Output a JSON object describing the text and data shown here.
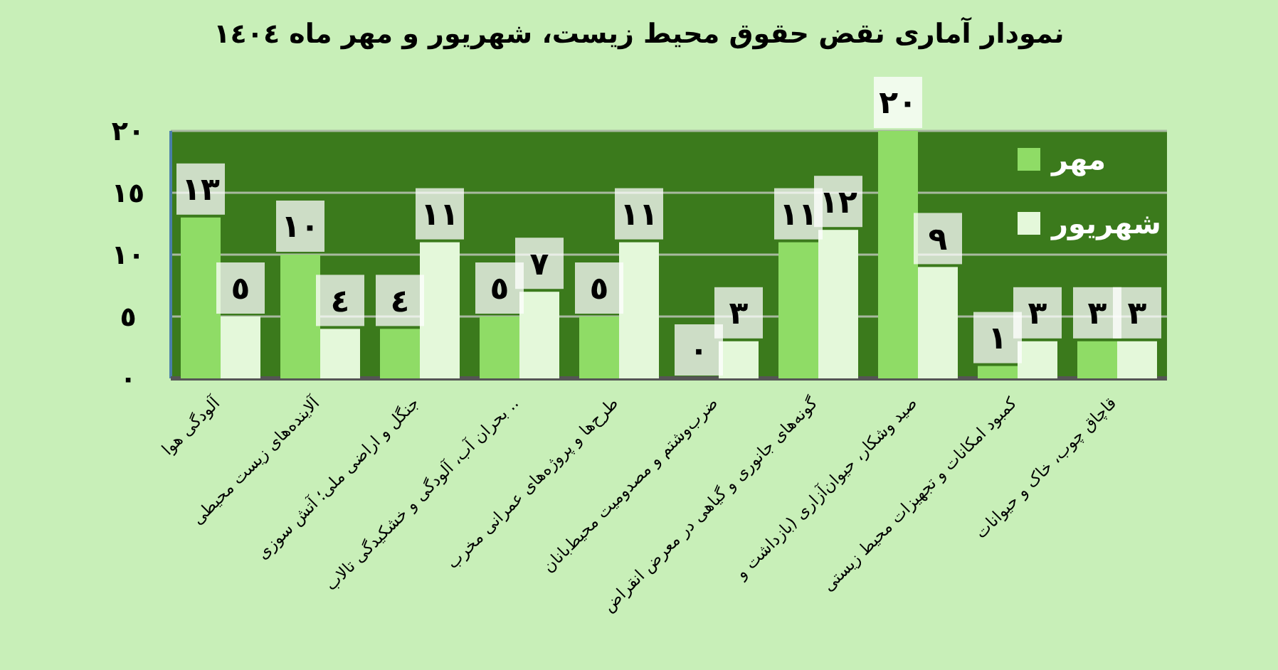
{
  "chart_data": {
    "type": "bar",
    "title": "نمودار آماری نقض حقوق محیط زیست، شهریور و مهر ماه  ١٤٠٤",
    "categories": [
      "آلودگی هوا",
      "آلاینده‌های زیست محیطی",
      "جنگل و اراضی ملی؛ آتش سوزی",
      "بحران آب، آلودگی و خشکیدگی تالاب ..",
      "طرح‌ها و پروژه‌های عمرانی مخرب",
      "ضرب‌وشتم و مصدومیت محیط‌بانان",
      "گونه‌های جانوری و گیاهی در معرض انقراض",
      "صید وشکار، حیوان‌آزاری (بازداشت و",
      "کمبود امکانات و تجهیزات محیط زیستی",
      "قاچاق چوب، خاک و حیوانات"
    ],
    "series": [
      {
        "name": "مهر",
        "color": "#8fdc66",
        "values": [
          13,
          10,
          4,
          5,
          5,
          0,
          11,
          20,
          1,
          3
        ],
        "value_labels": [
          "١٣",
          "١٠",
          "٤",
          "٥",
          "٥",
          "٠",
          "١١",
          "٢٠",
          "١",
          "٣"
        ]
      },
      {
        "name": "شهریور",
        "color": "#e4f8da",
        "values": [
          5,
          4,
          11,
          7,
          11,
          3,
          12,
          9,
          3,
          3
        ],
        "value_labels": [
          "٥",
          "٤",
          "١١",
          "٧",
          "١١",
          "٣",
          "١٢",
          "٩",
          "٣",
          "٣"
        ]
      }
    ],
    "ylim": [
      0,
      20
    ],
    "yticks": [
      {
        "value": 0,
        "label": "٠"
      },
      {
        "value": 5,
        "label": "٥"
      },
      {
        "value": 10,
        "label": "١٠"
      },
      {
        "value": 15,
        "label": "١٥"
      },
      {
        "value": 20,
        "label": "٢٠"
      }
    ],
    "grid": "y",
    "legend": "top right"
  }
}
